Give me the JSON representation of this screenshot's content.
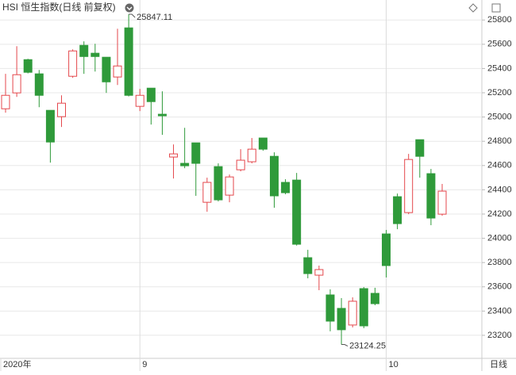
{
  "chart_data": {
    "type": "candlestick",
    "title": "HSI 恒生指数(日线 前复权)",
    "period": "日线",
    "categories": [
      "2020年",
      null,
      null,
      null,
      null,
      null,
      null,
      null,
      null,
      null,
      null,
      null,
      "9",
      null,
      null,
      null,
      null,
      null,
      null,
      null,
      null,
      null,
      null,
      null,
      null,
      null,
      null,
      null,
      null,
      null,
      null,
      null,
      null,
      null,
      "10",
      null,
      null,
      null,
      null,
      null
    ],
    "open": [
      25068,
      25199,
      25473,
      25356,
      25055,
      25003,
      25336,
      25591,
      25526,
      25493,
      25330,
      25735,
      25088,
      25238,
      25023,
      24670,
      24618,
      24787,
      24297,
      24591,
      24356,
      24565,
      24631,
      24827,
      24676,
      24461,
      24480,
      23840,
      23696,
      23533,
      23422,
      23285,
      23585,
      23546,
      24036,
      24343,
      24212,
      24813,
      24533,
      24199
    ],
    "high": [
      25356,
      25584,
      25480,
      25388,
      25055,
      25179,
      25558,
      25624,
      25604,
      25493,
      25728,
      25847.11,
      25232,
      25238,
      25212,
      24774,
      24911,
      24787,
      24500,
      24618,
      24526,
      24735,
      24827,
      24827,
      24709,
      24487,
      24539,
      23905,
      23775,
      23579,
      23507,
      23513,
      23598,
      23592,
      24069,
      24369,
      24696,
      24813,
      24572,
      24448
    ],
    "low": [
      25036,
      25166,
      25360,
      25081,
      24624,
      24918,
      25323,
      25356,
      25375,
      25199,
      25264,
      25170,
      25049,
      24938,
      24853,
      24493,
      24578,
      24350,
      24219,
      24304,
      24297,
      24552,
      24618,
      24722,
      24252,
      24363,
      23940,
      23670,
      23572,
      23233,
      23124.25,
      23265,
      23259,
      23448,
      23677,
      24075,
      24199,
      24500,
      24108,
      24186
    ],
    "close": [
      25179,
      25349,
      25369,
      25179,
      24794,
      25114,
      25545,
      25499,
      25499,
      25290,
      25421,
      25179,
      25179,
      25127,
      25010,
      24696,
      24598,
      24618,
      24461,
      24317,
      24506,
      24644,
      24735,
      24735,
      24350,
      24376,
      23951,
      23709,
      23742,
      23317,
      23246,
      23481,
      23278,
      23461,
      23775,
      24121,
      24650,
      24676,
      24167,
      24389
    ],
    "up_color": "#e4474c",
    "down_color": "#2f9a3a",
    "ylim": [
      23010,
      25965
    ],
    "yticks": [
      23200,
      23400,
      23600,
      23800,
      24000,
      24200,
      24400,
      24600,
      24800,
      25000,
      25200,
      25400,
      25600,
      25800
    ],
    "grid": true
  }
}
